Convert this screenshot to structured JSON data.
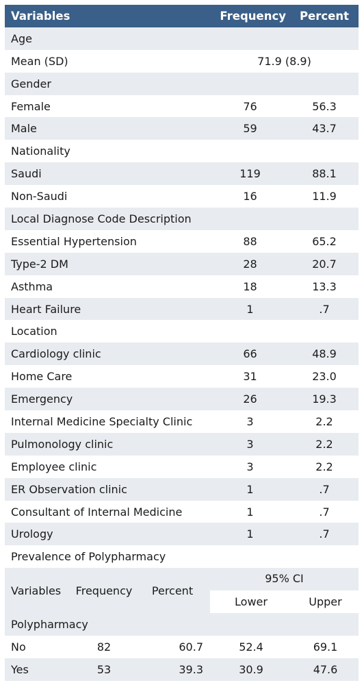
{
  "header": {
    "variables": "Variables",
    "frequency": "Frequency",
    "percent": "Percent"
  },
  "age": {
    "label": "Age",
    "mean_label": "Mean (SD)",
    "mean_value": "71.9 (8.9)"
  },
  "gender": {
    "label": "Gender",
    "rows": [
      {
        "name": "Female",
        "freq": "76",
        "pct": "56.3"
      },
      {
        "name": "Male",
        "freq": "59",
        "pct": "43.7"
      }
    ]
  },
  "nationality": {
    "label": "Nationality",
    "rows": [
      {
        "name": "Saudi",
        "freq": "119",
        "pct": "88.1"
      },
      {
        "name": "Non-Saudi",
        "freq": "16",
        "pct": "11.9"
      }
    ]
  },
  "diagnose": {
    "label": "Local Diagnose Code Description",
    "rows": [
      {
        "name": "Essential Hypertension",
        "freq": "88",
        "pct": "65.2"
      },
      {
        "name": "Type-2 DM",
        "freq": "28",
        "pct": "20.7"
      },
      {
        "name": "Asthma",
        "freq": "18",
        "pct": "13.3"
      },
      {
        "name": "Heart Failure",
        "freq": "1",
        "pct": ".7"
      }
    ]
  },
  "location": {
    "label": "Location",
    "rows": [
      {
        "name": "Cardiology clinic",
        "freq": "66",
        "pct": "48.9"
      },
      {
        "name": "Home Care",
        "freq": "31",
        "pct": "23.0"
      },
      {
        "name": "Emergency",
        "freq": "26",
        "pct": "19.3"
      },
      {
        "name": "Internal Medicine Specialty Clinic",
        "freq": "3",
        "pct": "2.2"
      },
      {
        "name": "Pulmonology clinic",
        "freq": "3",
        "pct": "2.2"
      },
      {
        "name": "Employee clinic",
        "freq": "3",
        "pct": "2.2"
      },
      {
        "name": "ER Observation clinic",
        "freq": "1",
        "pct": ".7"
      },
      {
        "name": "Consultant of Internal Medicine",
        "freq": "1",
        "pct": ".7"
      },
      {
        "name": "Urology",
        "freq": "1",
        "pct": ".7"
      }
    ]
  },
  "prevalence": {
    "title": "Prevalence of Polypharmacy",
    "header": {
      "variables": "Variables",
      "frequency": "Frequency",
      "percent": "Percent",
      "ci": "95% CI",
      "lower": "Lower",
      "upper": "Upper"
    },
    "section": "Polypharmacy",
    "rows": [
      {
        "name": "No",
        "freq": "82",
        "pct": "60.7",
        "lower": "52.4",
        "upper": "69.1"
      },
      {
        "name": "Yes",
        "freq": "53",
        "pct": "39.3",
        "lower": "30.9",
        "upper": "47.6"
      }
    ]
  }
}
